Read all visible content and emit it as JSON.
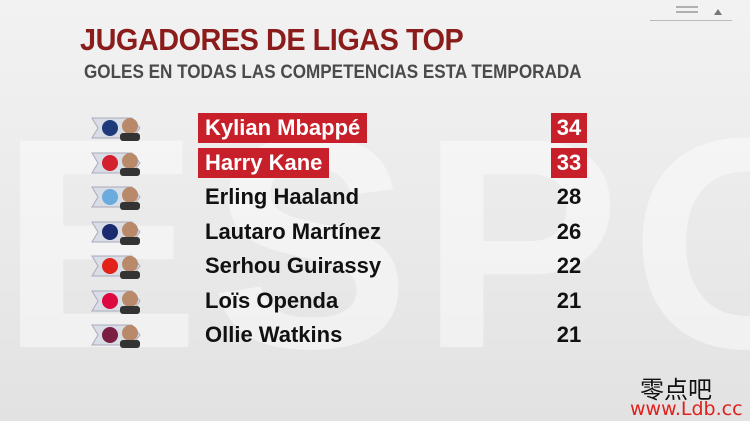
{
  "header": {
    "title": "JUGADORES DE LIGAS TOP",
    "subtitle": "GOLES EN TODAS LAS COMPETENCIAS ESTA TEMPORADA"
  },
  "table": {
    "rows": [
      {
        "player": "Kylian Mbappé",
        "goals": 34,
        "highlight": true
      },
      {
        "player": "Harry Kane",
        "goals": 33,
        "highlight": true
      },
      {
        "player": "Erling Haaland",
        "goals": 28,
        "highlight": false
      },
      {
        "player": "Lautaro Martínez",
        "goals": 26,
        "highlight": false
      },
      {
        "player": "Serhou Guirassy",
        "goals": 22,
        "highlight": false
      },
      {
        "player": "Loïs Openda",
        "goals": 21,
        "highlight": false
      },
      {
        "player": "Ollie Watkins",
        "goals": 21,
        "highlight": false
      }
    ]
  },
  "watermark": {
    "name": "零点吧",
    "url": "www.Ldb.cc"
  }
}
